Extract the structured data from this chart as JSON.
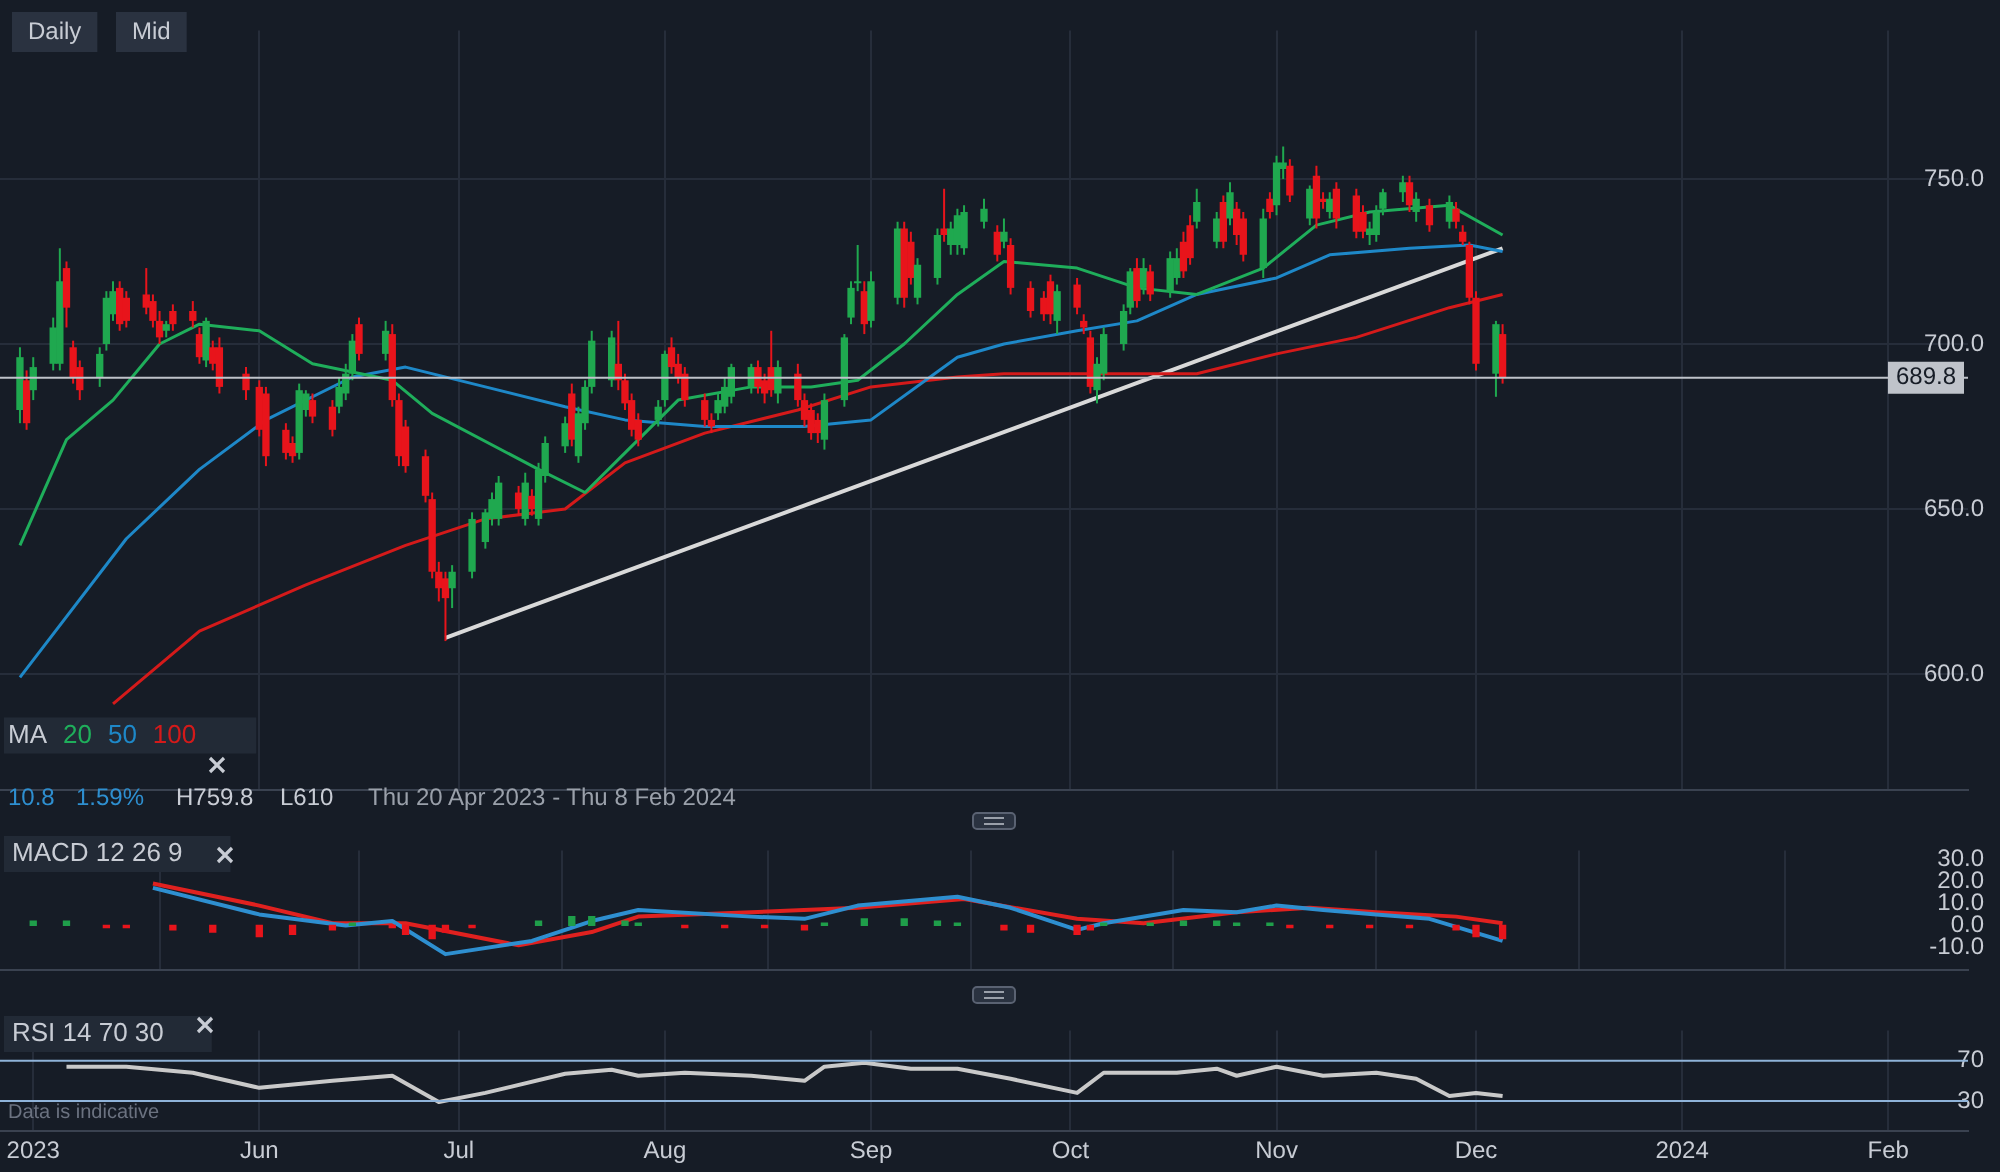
{
  "chart_data": [
    {
      "type": "candlestick",
      "legend_title": "MA",
      "legend": "bottom left",
      "grid": true,
      "tick_labels": "y",
      "annotations": [
        "Daily",
        "Mid",
        "10.8",
        "1.59%",
        "H759.8",
        "L610",
        "Thu 20 Apr 2023 - Thu 8 Feb 2024"
      ],
      "xlim": [
        "2023-04-23",
        "2024-02-13"
      ],
      "xticks": [
        {
          "value": "2023-06-01",
          "label": null
        },
        {
          "value": "2023-07-01",
          "label": null
        },
        {
          "value": "2023-08-01",
          "label": null
        },
        {
          "value": "2023-09-01",
          "label": null
        },
        {
          "value": "2023-10-01",
          "label": null
        },
        {
          "value": "2023-11-01",
          "label": null
        },
        {
          "value": "2023-12-01",
          "label": null
        },
        {
          "value": "2024-01-01",
          "label": null
        },
        {
          "value": "2024-02-01",
          "label": null
        }
      ],
      "ylim": [
        565,
        795
      ],
      "yticks": [
        {
          "value": 600,
          "label": "600.0"
        },
        {
          "value": 650,
          "label": "650.0"
        },
        {
          "value": 700,
          "label": "700.0"
        },
        {
          "value": 750,
          "label": "750.0"
        }
      ],
      "ref_lines": [
        {
          "axis": "y",
          "value": 689.8,
          "label": "689.8",
          "color": "#bfc3ca"
        }
      ],
      "x": [
        "2023-04-26",
        "2023-04-27",
        "2023-04-28",
        "2023-05-01",
        "2023-05-02",
        "2023-05-03",
        "2023-05-04",
        "2023-05-05",
        "2023-05-08",
        "2023-05-09",
        "2023-05-10",
        "2023-05-11",
        "2023-05-12",
        "2023-05-15",
        "2023-05-16",
        "2023-05-17",
        "2023-05-18",
        "2023-05-19",
        "2023-05-22",
        "2023-05-23",
        "2023-05-24",
        "2023-05-25",
        "2023-05-26",
        "2023-05-30",
        "2023-06-01",
        "2023-06-02",
        "2023-06-05",
        "2023-06-06",
        "2023-06-07",
        "2023-06-08",
        "2023-06-09",
        "2023-06-12",
        "2023-06-13",
        "2023-06-14",
        "2023-06-15",
        "2023-06-16",
        "2023-06-20",
        "2023-06-21",
        "2023-06-22",
        "2023-06-23",
        "2023-06-26",
        "2023-06-27",
        "2023-06-28",
        "2023-06-29",
        "2023-06-30",
        "2023-07-03",
        "2023-07-05",
        "2023-07-06",
        "2023-07-07",
        "2023-07-10",
        "2023-07-11",
        "2023-07-12",
        "2023-07-13",
        "2023-07-14",
        "2023-07-17",
        "2023-07-18",
        "2023-07-19",
        "2023-07-20",
        "2023-07-21",
        "2023-07-24",
        "2023-07-25",
        "2023-07-26",
        "2023-07-27",
        "2023-07-28",
        "2023-07-31",
        "2023-08-01",
        "2023-08-02",
        "2023-08-03",
        "2023-08-04",
        "2023-08-07",
        "2023-08-08",
        "2023-08-09",
        "2023-08-10",
        "2023-08-11",
        "2023-08-14",
        "2023-08-15",
        "2023-08-16",
        "2023-08-17",
        "2023-08-18",
        "2023-08-21",
        "2023-08-22",
        "2023-08-23",
        "2023-08-24",
        "2023-08-25",
        "2023-08-28",
        "2023-08-29",
        "2023-08-30",
        "2023-08-31",
        "2023-09-01",
        "2023-09-05",
        "2023-09-06",
        "2023-09-07",
        "2023-09-08",
        "2023-09-11",
        "2023-09-12",
        "2023-09-13",
        "2023-09-14",
        "2023-09-15",
        "2023-09-18",
        "2023-09-20",
        "2023-09-21",
        "2023-09-22",
        "2023-09-25",
        "2023-09-27",
        "2023-09-28",
        "2023-09-29",
        "2023-10-02",
        "2023-10-03",
        "2023-10-04",
        "2023-10-05",
        "2023-10-06",
        "2023-10-09",
        "2023-10-10",
        "2023-10-11",
        "2023-10-12",
        "2023-10-13",
        "2023-10-16",
        "2023-10-17",
        "2023-10-18",
        "2023-10-19",
        "2023-10-20",
        "2023-10-23",
        "2023-10-24",
        "2023-10-25",
        "2023-10-26",
        "2023-10-27",
        "2023-10-30",
        "2023-10-31",
        "2023-11-01",
        "2023-11-02",
        "2023-11-03",
        "2023-11-06",
        "2023-11-07",
        "2023-11-08",
        "2023-11-09",
        "2023-11-10",
        "2023-11-13",
        "2023-11-14",
        "2023-11-15",
        "2023-11-16",
        "2023-11-17",
        "2023-11-20",
        "2023-11-21",
        "2023-11-22",
        "2023-11-24",
        "2023-11-27",
        "2023-11-28",
        "2023-11-29",
        "2023-11-30",
        "2023-12-01",
        "2023-12-04",
        "2023-12-05"
      ],
      "ohlc": [
        [
          680,
          699,
          676,
          696
        ],
        [
          689,
          692,
          674,
          676
        ],
        [
          686,
          696,
          683,
          693
        ],
        [
          694,
          708,
          692,
          705
        ],
        [
          694,
          729,
          692,
          719
        ],
        [
          723,
          725,
          705,
          711
        ],
        [
          699,
          701,
          688,
          690
        ],
        [
          693,
          695,
          683,
          686
        ],
        [
          690,
          699,
          687,
          697
        ],
        [
          700,
          716,
          698,
          714
        ],
        [
          709,
          719,
          707,
          716
        ],
        [
          717,
          719,
          704,
          706
        ],
        [
          714,
          716,
          705,
          707
        ],
        [
          715,
          723,
          709,
          711
        ],
        [
          713,
          715,
          705,
          707
        ],
        [
          707,
          710,
          700,
          702
        ],
        [
          704,
          707,
          702,
          706
        ],
        [
          710,
          712,
          704,
          706
        ],
        [
          710,
          713,
          705,
          707
        ],
        [
          703,
          705,
          694,
          696
        ],
        [
          695,
          708,
          693,
          707
        ],
        [
          699,
          701,
          692,
          694
        ],
        [
          699,
          702,
          685,
          687
        ],
        [
          691,
          693,
          683,
          686
        ],
        [
          687,
          689,
          672,
          674
        ],
        [
          685,
          687,
          663,
          666
        ],
        [
          674,
          676,
          665,
          667
        ],
        [
          670,
          672,
          664,
          666
        ],
        [
          667,
          688,
          665,
          686
        ],
        [
          680,
          686,
          678,
          685
        ],
        [
          683,
          685,
          676,
          678
        ],
        [
          681,
          683,
          672,
          674
        ],
        [
          681,
          690,
          679,
          687
        ],
        [
          685,
          694,
          683,
          691
        ],
        [
          691,
          703,
          689,
          701
        ],
        [
          706,
          708,
          695,
          697
        ],
        [
          697,
          707,
          695,
          704
        ],
        [
          703,
          706,
          681,
          683
        ],
        [
          683,
          685,
          663,
          666
        ],
        [
          675,
          677,
          661,
          663
        ],
        [
          666,
          668,
          652,
          654
        ],
        [
          653,
          655,
          629,
          631
        ],
        [
          631,
          634,
          622,
          626
        ],
        [
          629,
          631,
          610,
          623
        ],
        [
          626,
          633,
          620,
          631
        ],
        [
          631,
          649,
          629,
          647
        ],
        [
          640,
          650,
          638,
          649
        ],
        [
          647,
          655,
          645,
          653
        ],
        [
          647,
          660,
          645,
          658
        ],
        [
          655,
          657,
          648,
          650
        ],
        [
          647,
          661,
          645,
          658
        ],
        [
          654,
          656,
          648,
          650
        ],
        [
          647,
          664,
          645,
          662
        ],
        [
          660,
          672,
          658,
          670
        ],
        [
          669,
          678,
          667,
          676
        ],
        [
          685,
          688,
          669,
          671
        ],
        [
          666,
          681,
          664,
          679
        ],
        [
          676,
          689,
          674,
          687
        ],
        [
          687,
          704,
          685,
          701
        ],
        [
          689,
          704,
          687,
          702
        ],
        [
          694,
          707,
          686,
          689
        ],
        [
          689,
          691,
          680,
          682
        ],
        [
          683,
          685,
          672,
          674
        ],
        [
          677,
          679,
          669,
          671
        ],
        [
          677,
          683,
          675,
          681
        ],
        [
          683,
          698,
          681,
          697
        ],
        [
          699,
          702,
          691,
          693
        ],
        [
          694,
          697,
          688,
          690
        ],
        [
          691,
          693,
          681,
          683
        ],
        [
          683,
          685,
          675,
          677
        ],
        [
          677,
          679,
          673,
          675
        ],
        [
          679,
          685,
          677,
          683
        ],
        [
          681,
          690,
          679,
          687
        ],
        [
          684,
          694,
          682,
          693
        ],
        [
          687,
          694,
          685,
          693
        ],
        [
          693,
          695,
          685,
          687
        ],
        [
          689,
          691,
          682,
          685
        ],
        [
          693,
          704,
          684,
          686
        ],
        [
          685,
          695,
          682,
          693
        ],
        [
          691,
          694,
          681,
          683
        ],
        [
          683,
          685,
          675,
          677
        ],
        [
          680,
          682,
          671,
          673
        ],
        [
          677,
          679,
          670,
          673
        ],
        [
          671,
          685,
          668,
          683
        ],
        [
          683,
          703,
          681,
          702
        ],
        [
          708,
          719,
          706,
          717
        ],
        [
          719,
          730,
          716,
          719
        ],
        [
          716,
          719,
          703,
          706
        ],
        [
          707,
          722,
          705,
          719
        ],
        [
          714,
          737,
          712,
          735
        ],
        [
          735,
          737,
          711,
          714
        ],
        [
          731,
          734,
          718,
          720
        ],
        [
          714,
          726,
          712,
          724
        ],
        [
          720,
          735,
          718,
          733
        ],
        [
          735,
          747,
          731,
          733
        ],
        [
          730,
          737,
          727,
          735
        ],
        [
          730,
          741,
          727,
          739
        ],
        [
          729,
          742,
          727,
          740
        ],
        [
          737,
          744,
          735,
          741
        ],
        [
          734,
          736,
          725,
          727
        ],
        [
          731,
          738,
          729,
          734
        ],
        [
          730,
          732,
          715,
          717
        ],
        [
          717,
          719,
          708,
          710
        ],
        [
          714,
          716,
          707,
          709
        ],
        [
          719,
          721,
          706,
          709
        ],
        [
          707,
          718,
          703,
          716
        ],
        [
          718,
          720,
          709,
          711
        ],
        [
          707,
          709,
          703,
          705
        ],
        [
          702,
          704,
          685,
          687
        ],
        [
          686,
          696,
          682,
          694
        ],
        [
          691,
          705,
          689,
          703
        ],
        [
          700,
          712,
          698,
          710
        ],
        [
          711,
          723,
          709,
          722
        ],
        [
          723,
          726,
          711,
          713
        ],
        [
          717,
          726,
          715,
          723
        ],
        [
          722,
          724,
          713,
          715
        ],
        [
          716,
          728,
          714,
          726
        ],
        [
          720,
          729,
          718,
          726
        ],
        [
          731,
          734,
          720,
          722
        ],
        [
          736,
          739,
          724,
          726
        ],
        [
          737,
          747,
          735,
          743
        ],
        [
          731,
          740,
          729,
          738
        ],
        [
          743,
          745,
          729,
          731
        ],
        [
          738,
          749,
          736,
          746
        ],
        [
          741,
          743,
          730,
          733
        ],
        [
          738,
          740,
          725,
          727
        ],
        [
          723,
          741,
          720,
          738
        ],
        [
          744,
          746,
          738,
          740
        ],
        [
          742,
          757,
          739,
          755
        ],
        [
          753,
          759.8,
          750,
          755
        ],
        [
          754,
          756,
          743,
          745
        ],
        [
          738,
          748,
          736,
          747
        ],
        [
          751,
          754,
          735,
          738
        ],
        [
          744,
          746,
          741,
          743
        ],
        [
          740,
          746,
          738,
          744
        ],
        [
          747,
          749,
          735,
          738
        ],
        [
          745,
          747,
          732,
          734
        ],
        [
          740,
          742,
          732,
          734
        ],
        [
          733,
          737,
          730,
          735
        ],
        [
          733,
          742,
          731,
          740
        ],
        [
          741,
          747,
          739,
          746
        ],
        [
          746,
          751,
          743,
          749
        ],
        [
          749,
          751,
          740,
          742
        ],
        [
          740,
          746,
          737,
          744
        ],
        [
          742,
          744,
          734,
          736
        ],
        [
          737,
          745,
          735,
          743
        ],
        [
          741,
          743,
          735,
          737
        ],
        [
          734,
          736,
          730,
          731
        ],
        [
          730,
          731,
          712,
          714
        ],
        [
          714,
          716,
          692,
          694
        ],
        [
          691,
          707,
          684,
          706
        ],
        [
          703,
          706,
          688,
          689.8
        ]
      ],
      "series": [
        {
          "name": "20",
          "color": "#1fae5b",
          "type": "line",
          "x": [
            "2023-04-26",
            "2023-05-03",
            "2023-05-10",
            "2023-05-17",
            "2023-05-23",
            "2023-06-01",
            "2023-06-09",
            "2023-06-21",
            "2023-06-27",
            "2023-07-13",
            "2023-07-20",
            "2023-07-26",
            "2023-08-03",
            "2023-08-14",
            "2023-08-23",
            "2023-08-30",
            "2023-09-06",
            "2023-09-14",
            "2023-09-21",
            "2023-10-02",
            "2023-10-11",
            "2023-10-20",
            "2023-10-30",
            "2023-11-07",
            "2023-11-15",
            "2023-11-27",
            "2023-12-05"
          ],
          "values": [
            639,
            671,
            683,
            700,
            706,
            704,
            694,
            689,
            679,
            662,
            655,
            667,
            683,
            687,
            687,
            689,
            700,
            715,
            725,
            723,
            717,
            715,
            723,
            736,
            740,
            742,
            733
          ]
        },
        {
          "name": "50",
          "color": "#1e88c8",
          "type": "line",
          "x": [
            "2023-04-26",
            "2023-05-12",
            "2023-05-23",
            "2023-06-02",
            "2023-06-15",
            "2023-06-23",
            "2023-07-05",
            "2023-07-17",
            "2023-07-26",
            "2023-08-07",
            "2023-08-22",
            "2023-09-01",
            "2023-09-14",
            "2023-09-21",
            "2023-10-02",
            "2023-10-11",
            "2023-10-20",
            "2023-11-01",
            "2023-11-09",
            "2023-11-21",
            "2023-11-30",
            "2023-12-05"
          ],
          "values": [
            599,
            641,
            662,
            677,
            690,
            693,
            687,
            681,
            677,
            675,
            675,
            677,
            696,
            700,
            704,
            707,
            715,
            720,
            727,
            729,
            730,
            728
          ]
        },
        {
          "name": "100",
          "color": "#d41a1a",
          "type": "line",
          "x": [
            "2023-05-10",
            "2023-05-23",
            "2023-06-08",
            "2023-06-23",
            "2023-07-05",
            "2023-07-17",
            "2023-07-26",
            "2023-08-07",
            "2023-08-21",
            "2023-09-01",
            "2023-09-14",
            "2023-09-21",
            "2023-10-06",
            "2023-10-20",
            "2023-11-01",
            "2023-11-13",
            "2023-11-27",
            "2023-12-05"
          ],
          "values": [
            591,
            613,
            627,
            639,
            647,
            650,
            664,
            673,
            680,
            687,
            690,
            691,
            691,
            691,
            697,
            702,
            711,
            715
          ]
        },
        {
          "color": "#d9d9d9",
          "type": "line",
          "x": [
            "2023-06-29",
            "2023-12-05"
          ],
          "values": [
            611,
            729
          ]
        }
      ]
    },
    {
      "type": "line",
      "title": "MACD 12 26 9",
      "grid": "x",
      "tick_labels": "y",
      "xlim": [
        "2023-04-23",
        "2024-02-13"
      ],
      "xticks": [
        {
          "value": "2023-06-01",
          "label": null
        },
        {
          "value": "2023-07-01",
          "label": null
        },
        {
          "value": "2023-08-01",
          "label": null
        },
        {
          "value": "2023-09-01",
          "label": null
        },
        {
          "value": "2023-10-01",
          "label": null
        },
        {
          "value": "2023-11-01",
          "label": null
        },
        {
          "value": "2023-12-01",
          "label": null
        },
        {
          "value": "2024-01-01",
          "label": null
        },
        {
          "value": "2024-02-01",
          "label": null
        }
      ],
      "ylim": [
        -20,
        34
      ],
      "yticks": [
        {
          "value": -10,
          "label": "-10.0"
        },
        {
          "value": 0,
          "label": "0.0"
        },
        {
          "value": 10,
          "label": "10.0"
        },
        {
          "value": 20,
          "label": "20.0"
        },
        {
          "value": 30,
          "label": "30.0"
        }
      ],
      "series": [
        {
          "type": "bar",
          "x": [
            "2023-04-28",
            "2023-05-03",
            "2023-05-09",
            "2023-05-12",
            "2023-05-19",
            "2023-05-25",
            "2023-06-01",
            "2023-06-06",
            "2023-06-12",
            "2023-06-15",
            "2023-06-21",
            "2023-06-23",
            "2023-06-27",
            "2023-06-29",
            "2023-07-03",
            "2023-07-13",
            "2023-07-18",
            "2023-07-21",
            "2023-07-26",
            "2023-07-28",
            "2023-08-04",
            "2023-08-10",
            "2023-08-16",
            "2023-08-22",
            "2023-08-25",
            "2023-08-31",
            "2023-09-06",
            "2023-09-11",
            "2023-09-14",
            "2023-09-21",
            "2023-09-25",
            "2023-10-02",
            "2023-10-04",
            "2023-10-06",
            "2023-10-13",
            "2023-10-18",
            "2023-10-23",
            "2023-10-26",
            "2023-10-31",
            "2023-11-03",
            "2023-11-09",
            "2023-11-15",
            "2023-11-21",
            "2023-11-28",
            "2023-12-01",
            "2023-12-05"
          ],
          "values": [
            2,
            2,
            -1,
            -1,
            -2,
            -3,
            -5,
            -4,
            -2,
            1,
            -1,
            -4,
            -6,
            -3,
            -1,
            2,
            4,
            4,
            2,
            1,
            -1,
            -1,
            -1,
            -2,
            1,
            3,
            3,
            2,
            1,
            -2,
            -3,
            -4,
            -2,
            1,
            1,
            2,
            2,
            1,
            1,
            -1,
            -1,
            -1,
            -1,
            -2,
            -5,
            -6
          ],
          "colors": [
            "#1f9e4a",
            "#1f9e4a",
            "#e8141b",
            "#e8141b",
            "#e8141b",
            "#e8141b",
            "#e8141b",
            "#e8141b",
            "#e8141b",
            "#1f9e4a",
            "#e8141b",
            "#e8141b",
            "#e8141b",
            "#e8141b",
            "#e8141b",
            "#1f9e4a",
            "#1f9e4a",
            "#1f9e4a",
            "#1f9e4a",
            "#1f9e4a",
            "#e8141b",
            "#e8141b",
            "#e8141b",
            "#e8141b",
            "#1f9e4a",
            "#1f9e4a",
            "#1f9e4a",
            "#1f9e4a",
            "#1f9e4a",
            "#e8141b",
            "#e8141b",
            "#e8141b",
            "#e8141b",
            "#1f9e4a",
            "#1f9e4a",
            "#1f9e4a",
            "#1f9e4a",
            "#1f9e4a",
            "#1f9e4a",
            "#e8141b",
            "#e8141b",
            "#e8141b",
            "#e8141b",
            "#e8141b",
            "#e8141b",
            "#e8141b"
          ]
        },
        {
          "type": "line",
          "color": "#2e8fd0",
          "x": [
            "2023-05-16",
            "2023-06-01",
            "2023-06-14",
            "2023-06-21",
            "2023-06-29",
            "2023-07-12",
            "2023-07-21",
            "2023-07-28",
            "2023-08-14",
            "2023-08-22",
            "2023-08-30",
            "2023-09-14",
            "2023-09-22",
            "2023-10-02",
            "2023-10-06",
            "2023-10-18",
            "2023-10-26",
            "2023-11-01",
            "2023-11-08",
            "2023-11-16",
            "2023-11-24",
            "2023-12-05"
          ],
          "values": [
            17,
            5,
            0,
            2,
            -13,
            -7,
            2,
            7,
            4,
            3,
            9,
            13,
            8,
            -2,
            1,
            7,
            6,
            9,
            7,
            5,
            3,
            -7
          ]
        },
        {
          "type": "line",
          "color": "#e0211f",
          "x": [
            "2023-05-16",
            "2023-06-01",
            "2023-06-12",
            "2023-06-23",
            "2023-07-10",
            "2023-07-21",
            "2023-07-28",
            "2023-08-14",
            "2023-08-30",
            "2023-09-15",
            "2023-10-02",
            "2023-10-12",
            "2023-10-26",
            "2023-11-06",
            "2023-11-16",
            "2023-11-28",
            "2023-12-05"
          ],
          "values": [
            19,
            9,
            1,
            1,
            -9,
            -3,
            4,
            6,
            8,
            12,
            3,
            1,
            6,
            8,
            6,
            4,
            1
          ]
        }
      ]
    },
    {
      "type": "line",
      "title": "RSI 14 70 30",
      "grid": "x",
      "annotations": [
        "Data is indicative"
      ],
      "xlim": [
        "2023-04-23",
        "2024-02-13"
      ],
      "xticks": [
        {
          "value": "2023-04-28",
          "label": "2023"
        },
        {
          "value": "2023-06-01",
          "label": "Jun"
        },
        {
          "value": "2023-07-01",
          "label": "Jul"
        },
        {
          "value": "2023-08-01",
          "label": "Aug"
        },
        {
          "value": "2023-09-01",
          "label": "Sep"
        },
        {
          "value": "2023-10-01",
          "label": "Oct"
        },
        {
          "value": "2023-11-01",
          "label": "Nov"
        },
        {
          "value": "2023-12-01",
          "label": "Dec"
        },
        {
          "value": "2024-01-01",
          "label": "2024"
        },
        {
          "value": "2024-02-01",
          "label": "Feb"
        }
      ],
      "ylim": [
        0,
        100
      ],
      "yticks": [
        30,
        70
      ],
      "ref_lines": [
        {
          "axis": "y",
          "value": 70,
          "color": "#8fb3d9"
        },
        {
          "axis": "y",
          "value": 30,
          "color": "#8fb3d9"
        }
      ],
      "series": [
        {
          "type": "line",
          "color": "#c9c9c9",
          "x": [
            "2023-05-03",
            "2023-05-12",
            "2023-05-22",
            "2023-06-01",
            "2023-06-12",
            "2023-06-21",
            "2023-06-28",
            "2023-07-05",
            "2023-07-17",
            "2023-07-24",
            "2023-07-28",
            "2023-08-04",
            "2023-08-14",
            "2023-08-22",
            "2023-08-25",
            "2023-08-31",
            "2023-09-07",
            "2023-09-14",
            "2023-09-22",
            "2023-10-02",
            "2023-10-06",
            "2023-10-17",
            "2023-10-23",
            "2023-10-26",
            "2023-11-01",
            "2023-11-08",
            "2023-11-16",
            "2023-11-22",
            "2023-11-27",
            "2023-12-01",
            "2023-12-05"
          ],
          "values": [
            64,
            64,
            58,
            43,
            50,
            55,
            29,
            38,
            57,
            61,
            55,
            58,
            55,
            50,
            64,
            68,
            62,
            62,
            52,
            38,
            58,
            58,
            62,
            55,
            64,
            55,
            58,
            52,
            35,
            38,
            35
          ]
        }
      ]
    }
  ]
}
